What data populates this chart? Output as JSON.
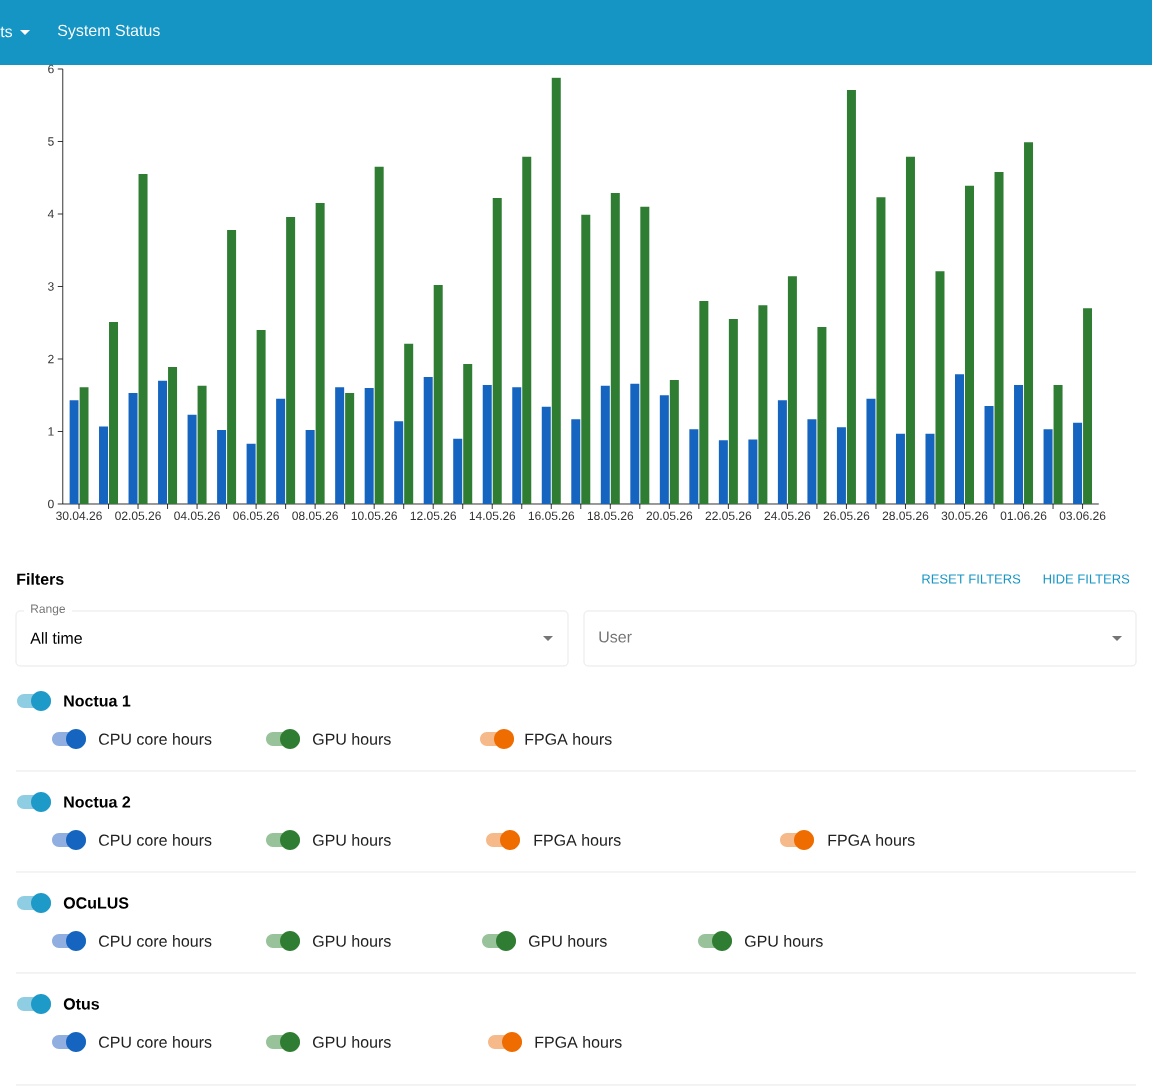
{
  "chart_data": {
    "type": "bar",
    "categories": [
      "30.04.26",
      null,
      "02.05.26",
      null,
      "04.05.26",
      null,
      "06.05.26",
      null,
      "08.05.26",
      null,
      "10.05.26",
      null,
      "12.05.26",
      null,
      "14.05.26",
      null,
      "16.05.26",
      null,
      "18.05.26",
      null,
      "20.05.26",
      null,
      "22.05.26",
      null,
      "24.05.26",
      null,
      "26.05.26",
      null,
      "28.05.26",
      null,
      "30.05.26",
      null,
      "01.06.26",
      null,
      "03.06.26"
    ],
    "series": [
      {
        "color": "#1565c0",
        "values": [
          1.43,
          1.07,
          1.53,
          1.7,
          1.23,
          1.02,
          0.83,
          1.45,
          1.02,
          1.61,
          1.6,
          1.14,
          1.75,
          0.9,
          1.64,
          1.61,
          1.34,
          1.17,
          1.63,
          1.66,
          1.5,
          1.03,
          0.88,
          0.89,
          1.43,
          1.17,
          1.06,
          1.45,
          0.97,
          0.97,
          1.79,
          1.35,
          1.64,
          1.03,
          1.12
        ]
      },
      {
        "color": "#2e7d32",
        "values": [
          1.61,
          2.51,
          4.55,
          1.89,
          1.63,
          3.78,
          2.4,
          3.96,
          4.15,
          1.53,
          4.65,
          2.21,
          3.02,
          1.93,
          4.22,
          4.79,
          5.88,
          3.99,
          4.29,
          4.1,
          1.71,
          2.8,
          2.55,
          2.74,
          3.14,
          2.44,
          5.71,
          4.23,
          4.79,
          3.21,
          4.39,
          4.58,
          4.99,
          1.64,
          2.7
        ]
      }
    ],
    "ylim": [
      0,
      6
    ],
    "yticks": [
      0,
      1,
      2,
      3,
      4,
      5,
      6
    ],
    "annotations": [
      "ts",
      "System Status",
      "Filters",
      "RESET FILTERS",
      "HIDE FILTERS",
      "Range",
      "All time",
      "User",
      "Noctua 1",
      "CPU core hours",
      "GPU hours",
      "FPGA hours",
      "Noctua 2",
      "CPU core hours",
      "GPU hours",
      "FPGA hours",
      "FPGA hours",
      "OCuLUS",
      "CPU core hours",
      "GPU hours",
      "GPU hours",
      "GPU hours",
      "Otus",
      "CPU core hours",
      "GPU hours",
      "FPGA hours"
    ]
  }
}
